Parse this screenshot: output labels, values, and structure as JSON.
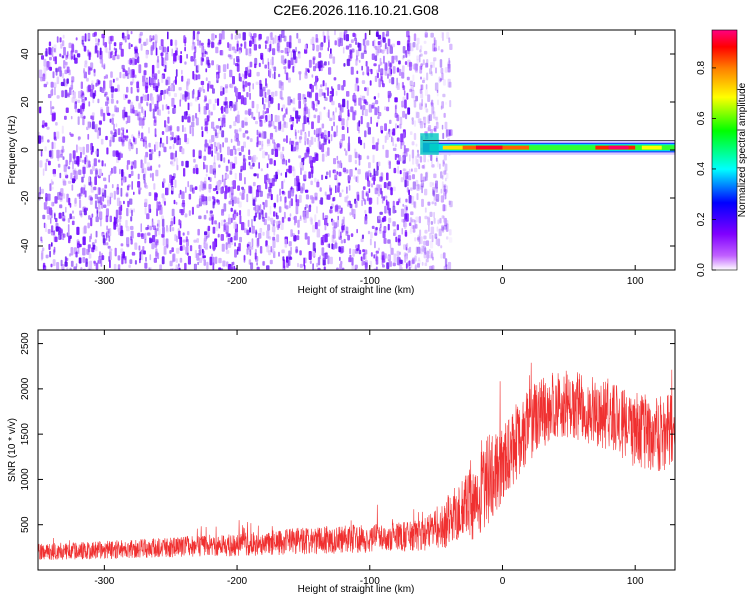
{
  "figure": {
    "title": "C2E6.2026.116.10.21.G08"
  },
  "chart_data": [
    {
      "type": "heatmap",
      "title": "C2E6.2026.116.10.21.G08",
      "xlabel": "Height of straight line (km)",
      "ylabel": "Frequency (Hz)",
      "xlim": [
        -350,
        130
      ],
      "ylim": [
        -50,
        50
      ],
      "x_ticks": [
        -300,
        -200,
        -100,
        0,
        100
      ],
      "x_tick_labels": [
        "-300",
        "-200",
        "-100",
        "0",
        "100"
      ],
      "y_ticks": [
        -40,
        -20,
        0,
        20,
        40
      ],
      "y_tick_labels": [
        "-40",
        "-20",
        "0",
        "20",
        "40"
      ],
      "colorbar": {
        "label": "Normalized spectral amplitude",
        "range": [
          0,
          0.95
        ],
        "ticks": [
          0,
          0.2,
          0.4,
          0.6,
          0.8
        ],
        "tick_labels": [
          "0.0",
          "0.2",
          "0.4",
          "0.6",
          "0.8"
        ],
        "colormap": [
          "#ffffff",
          "#8000ff",
          "#0000ff",
          "#00ffff",
          "#00ff00",
          "#ffff00",
          "#ff8000",
          "#ff0000",
          "#ff0080"
        ]
      },
      "regions": [
        {
          "x_range": [
            -350,
            -40
          ],
          "y_range": [
            -50,
            50
          ],
          "amplitude": "scattered 0.05-0.15"
        },
        {
          "x_range": [
            -60,
            130
          ],
          "y_center": 1,
          "amplitude": "0.3-0.95 narrow band"
        }
      ]
    },
    {
      "type": "line",
      "xlabel": "Height of straight line (km)",
      "ylabel": "SNR (10 * v/v)",
      "xlim": [
        -350,
        130
      ],
      "ylim": [
        0,
        2650
      ],
      "x_ticks": [
        -300,
        -200,
        -100,
        0,
        100
      ],
      "x_tick_labels": [
        "-300",
        "-200",
        "-100",
        "0",
        "100"
      ],
      "y_ticks": [
        500,
        1000,
        1500,
        2000,
        2500
      ],
      "y_tick_labels": [
        "500",
        "1000",
        "1500",
        "2000",
        "2500"
      ],
      "series_color": "#f03030",
      "envelope": {
        "x": [
          -350,
          -300,
          -250,
          -200,
          -150,
          -100,
          -60,
          -40,
          -30,
          -20,
          -10,
          0,
          20,
          40,
          60,
          80,
          100,
          120,
          130
        ],
        "mean": [
          200,
          220,
          250,
          280,
          320,
          350,
          380,
          550,
          650,
          800,
          1000,
          1200,
          1600,
          1850,
          1800,
          1700,
          1550,
          1500,
          1550
        ],
        "spread": [
          90,
          100,
          110,
          130,
          150,
          160,
          170,
          300,
          350,
          450,
          500,
          450,
          400,
          380,
          380,
          380,
          420,
          420,
          400
        ]
      }
    }
  ]
}
